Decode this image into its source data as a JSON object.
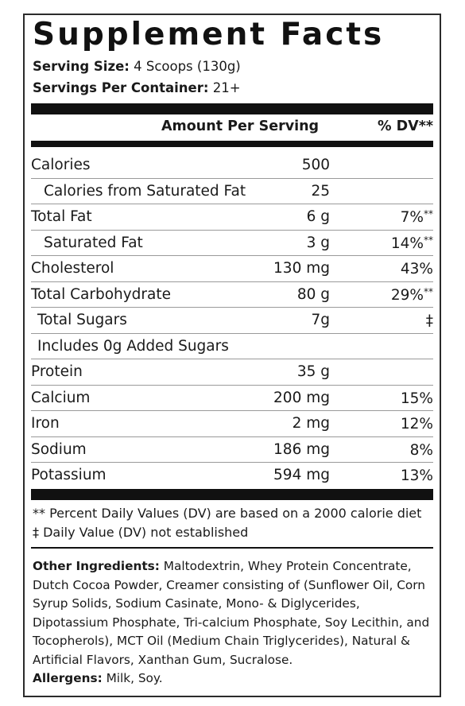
{
  "title": "Supplement Facts",
  "serving_size_label": "Serving Size:",
  "serving_size_value": "4 Scoops (130g)",
  "servings_per_container_label": "Servings Per Container:",
  "servings_per_container_value": "21+",
  "header": {
    "amount": "Amount Per Serving",
    "dv": "% DV**"
  },
  "rows": [
    {
      "name": "Calories",
      "indent": 0,
      "amount": "500",
      "dv": "",
      "dv_mark": ""
    },
    {
      "name": "Calories from Saturated Fat",
      "indent": 2,
      "amount": "25",
      "dv": "",
      "dv_mark": ""
    },
    {
      "name": "Total Fat",
      "indent": 0,
      "amount": "6 g",
      "dv": "7%",
      "dv_mark": "**"
    },
    {
      "name": "Saturated Fat",
      "indent": 2,
      "amount": "3 g",
      "dv": "14%",
      "dv_mark": "**"
    },
    {
      "name": "Cholesterol",
      "indent": 0,
      "amount": "130 mg",
      "dv": "43%",
      "dv_mark": ""
    },
    {
      "name": "Total Carbohydrate",
      "indent": 0,
      "amount": "80 g",
      "dv": "29%",
      "dv_mark": "**"
    },
    {
      "name": "Total Sugars",
      "indent": 1,
      "amount": "7g",
      "dv": "‡",
      "dv_mark": ""
    },
    {
      "name": "Includes 0g Added Sugars",
      "indent": 1,
      "amount": "",
      "dv": "",
      "dv_mark": ""
    },
    {
      "name": "Protein",
      "indent": 0,
      "amount": "35 g",
      "dv": "",
      "dv_mark": ""
    },
    {
      "name": "Calcium",
      "indent": 0,
      "amount": "200 mg",
      "dv": "15%",
      "dv_mark": ""
    },
    {
      "name": "Iron",
      "indent": 0,
      "amount": "2 mg",
      "dv": "12%",
      "dv_mark": ""
    },
    {
      "name": "Sodium",
      "indent": 0,
      "amount": "186 mg",
      "dv": "8%",
      "dv_mark": ""
    },
    {
      "name": "Potassium",
      "indent": 0,
      "amount": "594 mg",
      "dv": "13%",
      "dv_mark": ""
    }
  ],
  "footnote_1": "** Percent Daily Values (DV) are based on a 2000 calorie diet",
  "footnote_2": "‡ Daily Value (DV) not established",
  "other_ingredients_label": "Other Ingredients:",
  "other_ingredients_text": "Maltodextrin, Whey Protein Concentrate, Dutch Cocoa Powder, Creamer consisting of (Sunflower Oil, Corn Syrup Solids, Sodium Casinate, Mono- & Diglycerides, Dipotassium Phosphate, Tri-calcium Phosphate, Soy Lecithin, and Tocopherols), MCT Oil (Medium Chain Triglycerides), Natural & Artificial Flavors, Xanthan Gum, Sucralose.",
  "allergens_label": "Allergens:",
  "allergens_text": "Milk, Soy."
}
